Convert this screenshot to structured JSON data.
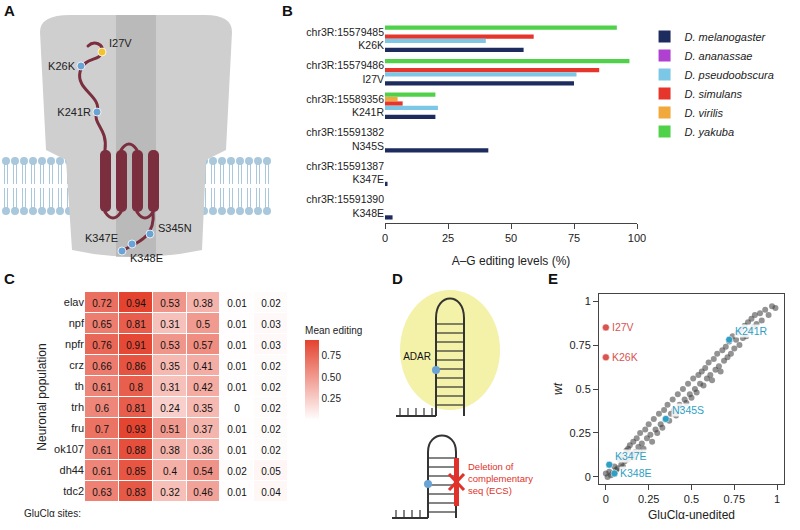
{
  "panels": {
    "A": {
      "panel": "A",
      "sites": [
        {
          "label": "I27V"
        },
        {
          "label": "K26K"
        },
        {
          "label": "K241R"
        },
        {
          "label": "S345N"
        },
        {
          "label": "K347E"
        },
        {
          "label": "K348E"
        }
      ]
    },
    "D": {
      "panel": "D",
      "enzyme": "ADAR",
      "deletion_label": "Deletion of complementary seq (ECS)"
    }
  },
  "chart_data": [
    {
      "panel": "B",
      "type": "bar",
      "orientation": "horizontal",
      "categories": [
        "chr3R:15579485 K26K",
        "chr3R:15579486 I27V",
        "chr3R:15589356 K241R",
        "chr3R:15591382 N345S",
        "chr3R:15591387 K347E",
        "chr3R:15591390 K348E"
      ],
      "series": [
        {
          "name": "D. melanogaster",
          "color": "#1d2b5e",
          "values": [
            55,
            75,
            20,
            41,
            1,
            3
          ]
        },
        {
          "name": "D. ananassae",
          "color": "#b040d0",
          "values": [
            null,
            null,
            null,
            null,
            null,
            null
          ]
        },
        {
          "name": "D. pseudoobscura",
          "color": "#7cc6e6",
          "values": [
            40,
            76,
            21,
            null,
            null,
            null
          ]
        },
        {
          "name": "D. simulans",
          "color": "#e6352b",
          "values": [
            59,
            85,
            7,
            null,
            null,
            null
          ]
        },
        {
          "name": "D. virilis",
          "color": "#f2a93b",
          "values": [
            null,
            null,
            5,
            null,
            null,
            null
          ]
        },
        {
          "name": "D. yakuba",
          "color": "#4fd24a",
          "values": [
            92,
            97,
            20,
            null,
            null,
            null
          ]
        }
      ],
      "xlabel": "A–G editing levels (%)",
      "xlim": [
        0,
        100
      ],
      "xticks": [
        0,
        25,
        50,
        75,
        100
      ],
      "grid": false,
      "legend": "right"
    },
    {
      "panel": "C",
      "type": "heatmap",
      "categories": [
        null,
        null,
        null,
        null,
        null,
        null
      ],
      "rows": [
        "elav",
        "npf",
        "npfr",
        "crz",
        "th",
        "trh",
        "fru",
        "ok107",
        "dh44",
        "tdc2"
      ],
      "cells": [
        [
          0.72,
          0.94,
          0.53,
          0.38,
          0.01,
          0.02
        ],
        [
          0.65,
          0.81,
          0.31,
          0.5,
          0.01,
          0.03
        ],
        [
          0.76,
          0.91,
          0.53,
          0.57,
          0.01,
          0.03
        ],
        [
          0.66,
          0.86,
          0.35,
          0.41,
          0.01,
          0.02
        ],
        [
          0.61,
          0.8,
          0.31,
          0.42,
          0.01,
          0.02
        ],
        [
          0.6,
          0.81,
          0.24,
          0.35,
          0,
          0.02
        ],
        [
          0.7,
          0.93,
          0.51,
          0.37,
          0.01,
          0.02
        ],
        [
          0.61,
          0.88,
          0.38,
          0.36,
          0.01,
          0.02
        ],
        [
          0.61,
          0.85,
          0.4,
          0.54,
          0.02,
          0.05
        ],
        [
          0.63,
          0.83,
          0.32,
          0.46,
          0.01,
          0.04
        ]
      ],
      "data_labels": true,
      "ylabel": "Neuronal population",
      "xlabel": "GluClα sites:",
      "colorbar_title": "Mean editing",
      "color_range": [
        0,
        0.94
      ],
      "color_ticks": [
        0.25,
        {
          "value": 0.5,
          "label": "0.50"
        },
        0.75
      ]
    },
    {
      "panel": "E",
      "type": "scatter",
      "color": "#3a3a3a",
      "grid": false,
      "x": [
        0.02,
        0.03,
        0.05,
        0.06,
        0.08,
        0.09,
        0.1,
        0.11,
        0.12,
        0.13,
        0.14,
        0.15,
        0.16,
        0.17,
        0.18,
        0.19,
        0.2,
        0.21,
        0.22,
        0.23,
        0.24,
        0.25,
        0.26,
        0.27,
        0.28,
        0.29,
        0.3,
        0.31,
        0.32,
        0.33,
        0.34,
        0.35,
        0.36,
        0.37,
        0.38,
        0.39,
        0.4,
        0.41,
        0.42,
        0.43,
        0.44,
        0.45,
        0.46,
        0.47,
        0.48,
        0.49,
        0.5,
        0.51,
        0.52,
        0.53,
        0.54,
        0.55,
        0.56,
        0.57,
        0.58,
        0.59,
        0.6,
        0.61,
        0.62,
        0.63,
        0.64,
        0.65,
        0.66,
        0.67,
        0.68,
        0.69,
        0.7,
        0.71,
        0.72,
        0.73,
        0.74,
        0.75,
        0.76,
        0.77,
        0.78,
        0.79,
        0.8,
        0.81,
        0.82,
        0.83,
        0.84,
        0.85,
        0.86,
        0.87,
        0.88,
        0.9,
        0.91,
        0.93,
        0.95,
        0.97,
        0.99,
        0.01,
        0.0,
        0.04,
        0.07,
        0.1,
        0.13,
        0.16,
        0.2
      ],
      "y": [
        0.03,
        0.01,
        0.06,
        0.04,
        0.1,
        0.07,
        0.12,
        0.09,
        0.15,
        0.1,
        0.18,
        0.13,
        0.2,
        0.14,
        0.22,
        0.17,
        0.25,
        0.19,
        0.16,
        0.27,
        0.22,
        0.3,
        0.24,
        0.2,
        0.33,
        0.27,
        0.25,
        0.36,
        0.3,
        0.28,
        0.38,
        0.33,
        0.41,
        0.32,
        0.36,
        0.44,
        0.38,
        0.35,
        0.47,
        0.41,
        0.39,
        0.5,
        0.44,
        0.42,
        0.53,
        0.47,
        0.45,
        0.56,
        0.5,
        0.48,
        0.58,
        0.53,
        0.6,
        0.52,
        0.62,
        0.56,
        0.65,
        0.58,
        0.55,
        0.67,
        0.61,
        0.7,
        0.63,
        0.6,
        0.72,
        0.66,
        0.74,
        0.68,
        0.77,
        0.7,
        0.8,
        0.73,
        0.78,
        0.82,
        0.75,
        0.84,
        0.79,
        0.86,
        0.8,
        0.88,
        0.83,
        0.9,
        0.85,
        0.92,
        0.87,
        0.93,
        0.89,
        0.95,
        0.92,
        0.97,
        0.96,
        0.0,
        0.02,
        0.02,
        0.05,
        0.06,
        0.16,
        0.11,
        0.14
      ],
      "xlabel": "GluClα-unedited",
      "ylabel": "wt",
      "xlim": [
        -0.04,
        1.04
      ],
      "ylim": [
        -0.04,
        1.04
      ],
      "xticks": [
        0,
        0.25,
        0.5,
        0.75,
        1
      ],
      "yticks": [
        0,
        0.25,
        0.5,
        0.75,
        1
      ],
      "annotations": [
        {
          "text": "I27V",
          "x": 0,
          "y": 0.85,
          "color": "#d9534f"
        },
        {
          "text": "K26K",
          "x": 0,
          "y": 0.68,
          "color": "#d9534f"
        },
        {
          "text": "K241R",
          "x": 0.72,
          "y": 0.78,
          "color": "#2f9fc4"
        },
        {
          "text": "N345S",
          "x": 0.35,
          "y": 0.33,
          "color": "#2f9fc4"
        },
        {
          "text": "K347E",
          "x": 0.02,
          "y": 0.07,
          "color": "#2f9fc4"
        },
        {
          "text": "K348E",
          "x": 0.05,
          "y": 0.02,
          "color": "#2f9fc4"
        }
      ]
    }
  ]
}
